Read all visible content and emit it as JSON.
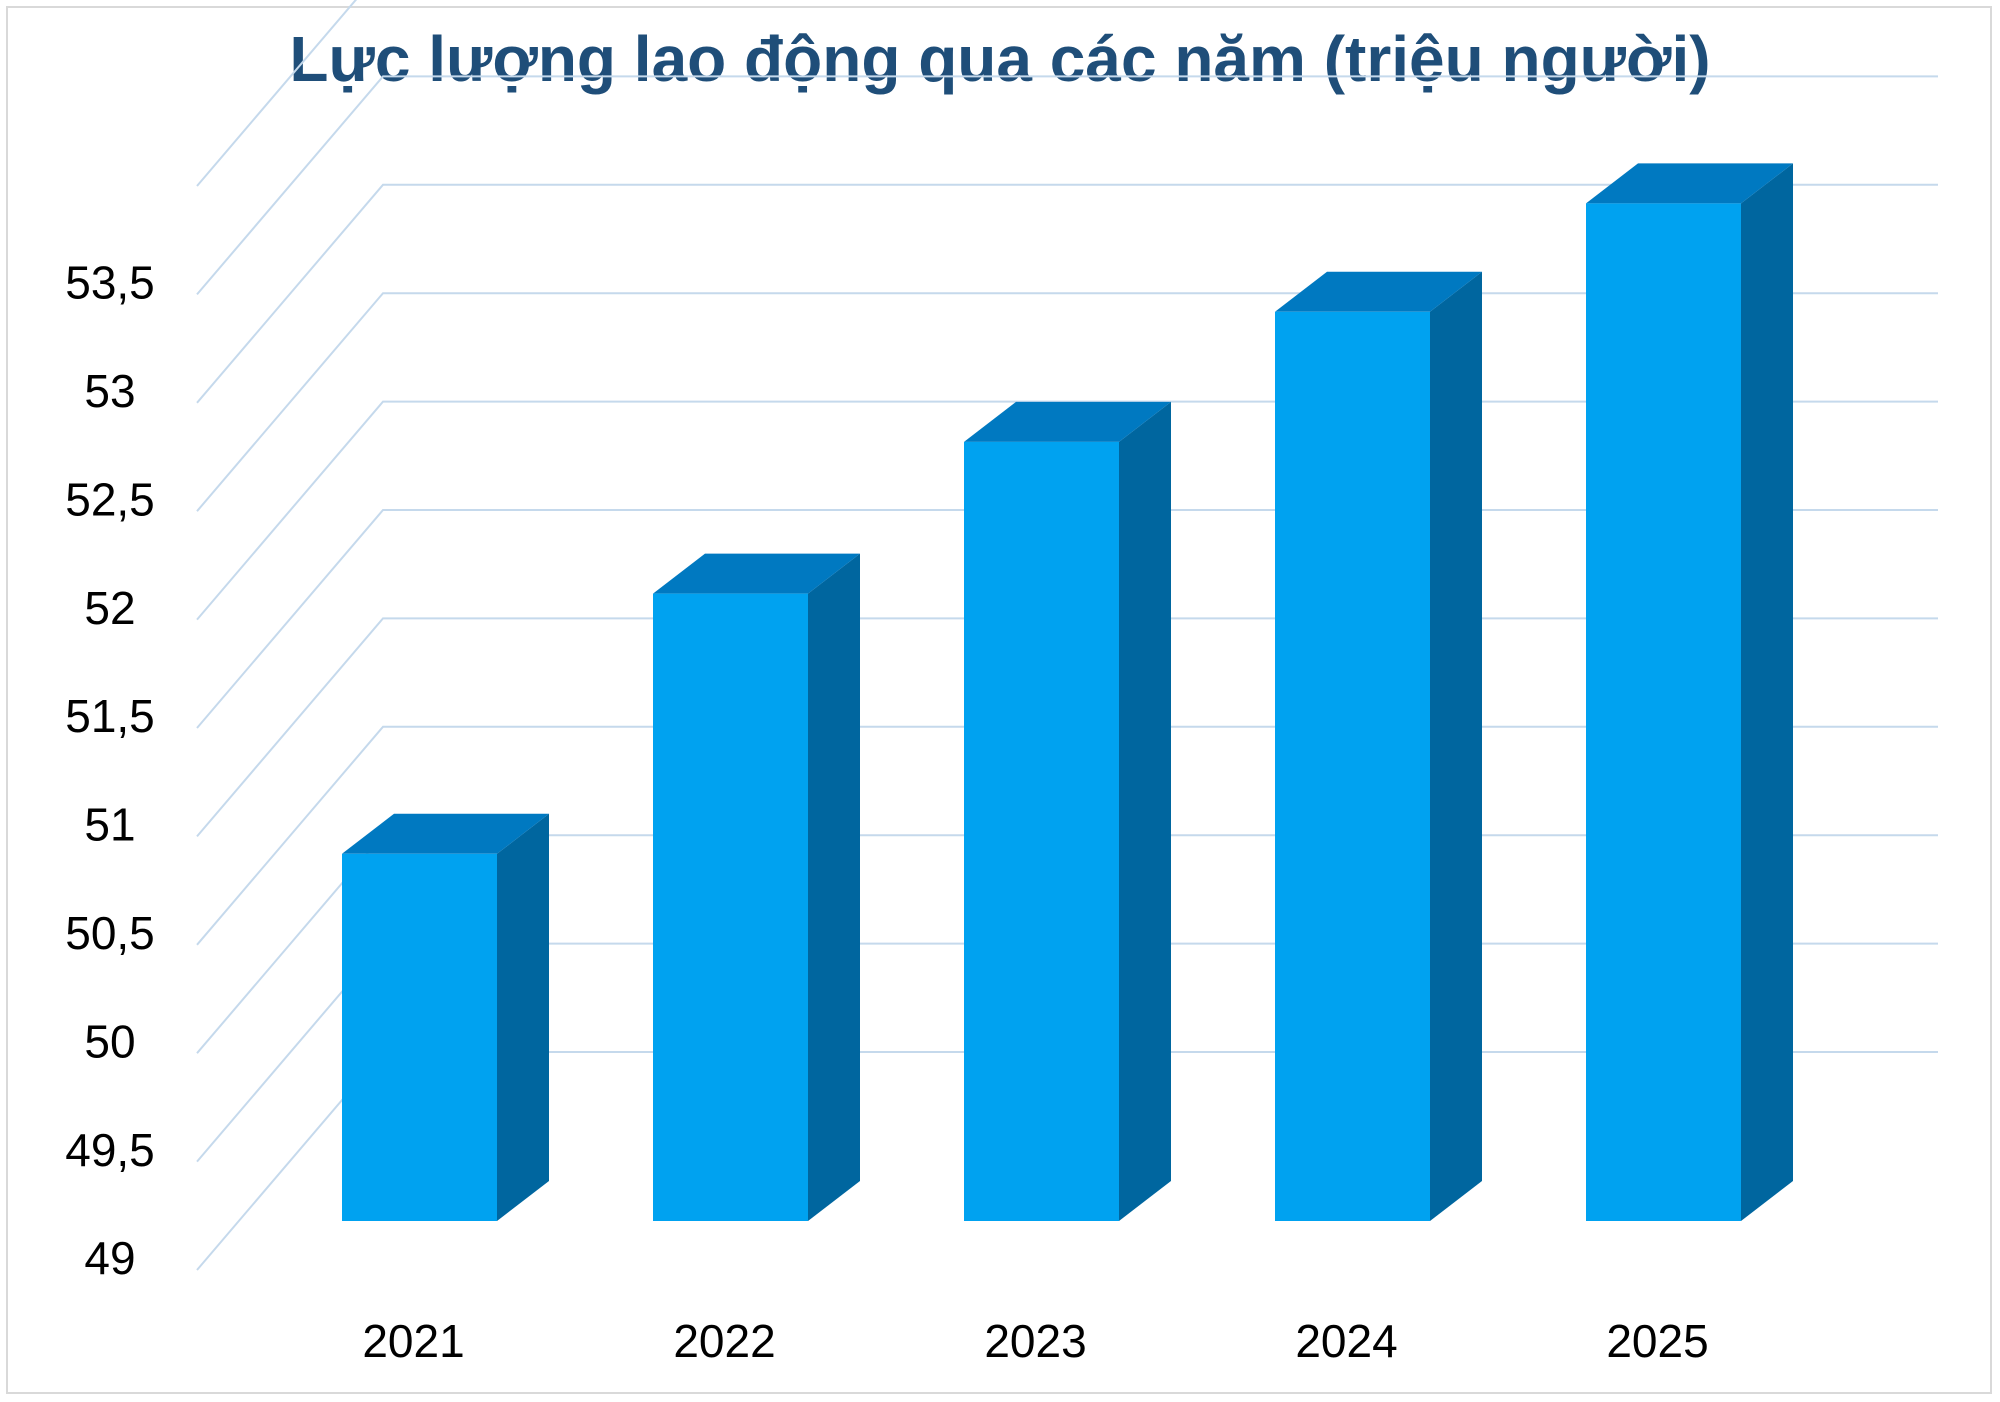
{
  "chart_data": {
    "type": "bar",
    "style": "3d-column",
    "title": "Lực lượng lao động qua các năm (triệu người)",
    "categories": [
      "2021",
      "2022",
      "2023",
      "2024",
      "2025"
    ],
    "values": [
      50.5,
      51.7,
      52.4,
      53.0,
      53.5
    ],
    "ylim": [
      49,
      54
    ],
    "ytick_values": [
      49,
      49.5,
      50,
      50.5,
      51,
      51.5,
      52,
      52.5,
      53,
      53.5
    ],
    "ytick_labels": [
      "49",
      "49,5",
      "50",
      "50,5",
      "51",
      "51,5",
      "52",
      "52,5",
      "53",
      "53,5"
    ],
    "xlabel": "",
    "ylabel": "",
    "grid": true,
    "legend": "none",
    "colors": {
      "bar_front": "#00a2f0",
      "bar_top": "#0079c1",
      "bar_side": "#00669f",
      "gridline": "#c5d9ec",
      "title": "#1f4e79",
      "tick_text": "#000000"
    }
  }
}
